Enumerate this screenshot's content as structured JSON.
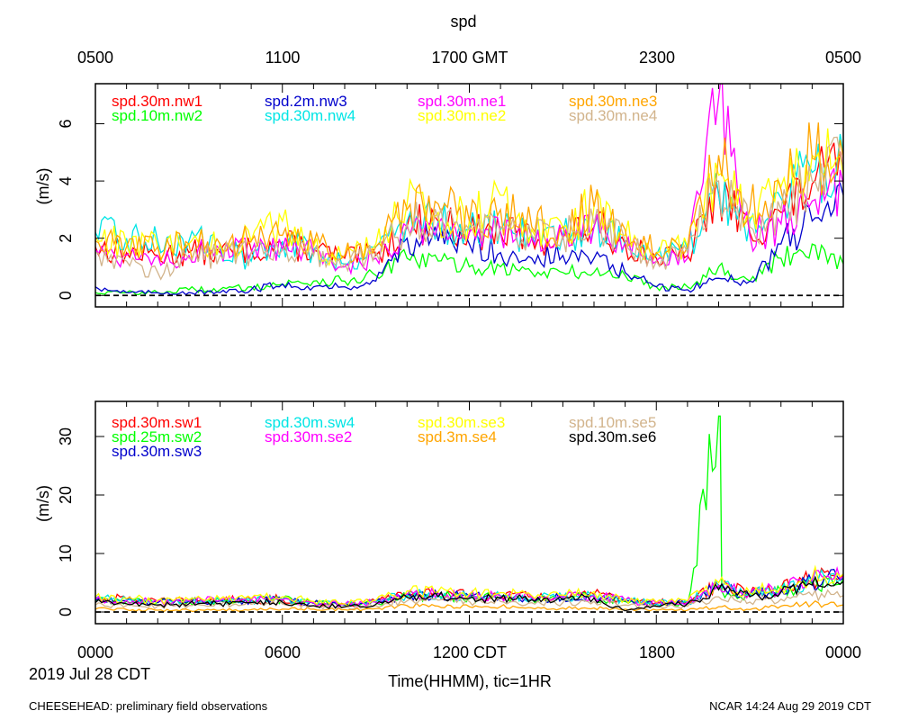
{
  "title": "spd",
  "top_axis": {
    "labels": [
      "0500",
      "1100",
      "1700 GMT",
      "2300",
      "0500"
    ]
  },
  "bottom_axis": {
    "labels": [
      "0000",
      "0600",
      "1200 CDT",
      "1800",
      "0000"
    ],
    "date_label": "2019 Jul 28 CDT",
    "xlabel": "Time(HHMM), tic=1HR"
  },
  "footer": {
    "left": "CHEESEHEAD: preliminary field observations",
    "right": "NCAR 14:24 Aug 29 2019 CDT"
  },
  "chart_data": [
    {
      "type": "line",
      "panel": "upper",
      "ylabel": "(m/s)",
      "ylim": [
        -0.4,
        7.4
      ],
      "yticks": [
        0,
        2,
        4,
        6
      ],
      "x_units": "hours since 0000 CDT",
      "xlim": [
        0,
        24
      ],
      "reference_line": 0,
      "series": [
        {
          "name": "spd.30m.nw1",
          "color": "#ff0000",
          "x": [
            0,
            1,
            2,
            3,
            4,
            5,
            6,
            7,
            8,
            9,
            10,
            11,
            12,
            13,
            14,
            15,
            16,
            17,
            18,
            19,
            20,
            21,
            22,
            23,
            24
          ],
          "values": [
            1.7,
            1.5,
            1.4,
            1.5,
            1.5,
            1.6,
            1.8,
            1.6,
            1.3,
            1.4,
            2.4,
            2.6,
            2.2,
            2.2,
            2.0,
            2.0,
            2.4,
            1.8,
            1.3,
            1.4,
            3.6,
            2.2,
            2.9,
            3.9,
            4.4
          ]
        },
        {
          "name": "spd.10m.nw2",
          "color": "#00ff00",
          "x": [
            0,
            1,
            2,
            3,
            4,
            5,
            6,
            7,
            8,
            9,
            10,
            11,
            12,
            13,
            14,
            15,
            16,
            17,
            18,
            19,
            20,
            21,
            22,
            23,
            24
          ],
          "values": [
            0.1,
            0.1,
            0.1,
            0.2,
            0.2,
            0.3,
            0.4,
            0.5,
            0.5,
            0.7,
            1.3,
            1.2,
            1.0,
            1.0,
            0.8,
            0.8,
            0.8,
            0.7,
            0.3,
            0.3,
            1.0,
            0.5,
            1.3,
            1.8,
            1.1
          ]
        },
        {
          "name": "spd.2m.nw3",
          "color": "#0000cc",
          "x": [
            0,
            1,
            2,
            3,
            4,
            5,
            6,
            7,
            8,
            9,
            10,
            11,
            12,
            13,
            14,
            15,
            16,
            17,
            18,
            19,
            20,
            21,
            22,
            23,
            24
          ],
          "values": [
            0.3,
            0.1,
            0.1,
            0.1,
            0.1,
            0.2,
            0.4,
            0.3,
            0.3,
            0.5,
            2.0,
            1.9,
            1.8,
            1.5,
            1.3,
            1.4,
            1.3,
            0.8,
            0.3,
            0.2,
            0.6,
            0.5,
            1.8,
            2.6,
            3.5
          ]
        },
        {
          "name": "spd.30m.nw4",
          "color": "#00e5e5",
          "x": [
            0,
            1,
            2,
            3,
            4,
            5,
            6,
            7,
            8,
            9,
            10,
            11,
            12,
            13,
            14,
            15,
            16,
            17,
            18,
            19,
            20,
            21,
            22,
            23,
            24
          ],
          "values": [
            2.2,
            2.0,
            1.9,
            1.9,
            1.8,
            1.2,
            1.9,
            1.6,
            1.1,
            1.7,
            2.6,
            2.6,
            2.3,
            2.3,
            2.1,
            2.1,
            2.4,
            1.9,
            1.4,
            1.6,
            3.5,
            2.6,
            3.4,
            4.3,
            5.0
          ]
        },
        {
          "name": "spd.30m.ne1",
          "color": "#ff00ff",
          "x": [
            0,
            1,
            2,
            3,
            4,
            5,
            6,
            7,
            8,
            9,
            10,
            11,
            12,
            13,
            14,
            15,
            16,
            17,
            18,
            19,
            20,
            21,
            22,
            23,
            24
          ],
          "values": [
            1.6,
            1.4,
            1.4,
            1.4,
            1.6,
            1.5,
            1.6,
            1.5,
            1.0,
            1.3,
            2.4,
            2.5,
            2.2,
            2.2,
            2.0,
            2.0,
            2.4,
            1.8,
            1.2,
            1.3,
            6.9,
            2.1,
            2.5,
            3.3,
            3.9
          ]
        },
        {
          "name": "spd.30m.ne2",
          "color": "#ffff00",
          "x": [
            0,
            1,
            2,
            3,
            4,
            5,
            6,
            7,
            8,
            9,
            10,
            11,
            12,
            13,
            14,
            15,
            16,
            17,
            18,
            19,
            20,
            21,
            22,
            23,
            24
          ],
          "values": [
            2.0,
            1.8,
            1.7,
            1.8,
            1.8,
            1.9,
            2.6,
            1.7,
            1.4,
            1.8,
            3.2,
            2.9,
            2.6,
            3.5,
            2.3,
            2.4,
            3.1,
            2.1,
            1.5,
            1.7,
            4.2,
            2.7,
            3.8,
            4.9,
            4.2
          ]
        },
        {
          "name": "spd.30m.ne3",
          "color": "#ffa500",
          "x": [
            0,
            1,
            2,
            3,
            4,
            5,
            6,
            7,
            8,
            9,
            10,
            11,
            12,
            13,
            14,
            15,
            16,
            17,
            18,
            19,
            20,
            21,
            22,
            23,
            24
          ],
          "values": [
            1.9,
            1.7,
            1.7,
            1.8,
            1.8,
            1.9,
            2.1,
            1.8,
            1.4,
            1.7,
            3.0,
            3.2,
            2.6,
            3.0,
            2.4,
            2.4,
            3.1,
            2.3,
            1.5,
            1.7,
            4.9,
            3.0,
            3.7,
            4.8,
            4.8
          ]
        },
        {
          "name": "spd.30m.ne4",
          "color": "#d2b48c",
          "x": [
            0,
            1,
            2,
            3,
            4,
            5,
            6,
            7,
            8,
            9,
            10,
            11,
            12,
            13,
            14,
            15,
            16,
            17,
            18,
            19,
            20,
            21,
            22,
            23,
            24
          ],
          "values": [
            1.5,
            1.2,
            0.8,
            1.3,
            1.4,
            1.5,
            1.6,
            1.4,
            1.1,
            1.5,
            2.5,
            2.7,
            2.3,
            2.4,
            2.1,
            2.1,
            2.5,
            1.9,
            1.2,
            1.5,
            4.0,
            2.4,
            3.0,
            4.0,
            4.4
          ]
        }
      ]
    },
    {
      "type": "line",
      "panel": "lower",
      "ylabel": "(m/s)",
      "ylim": [
        -2,
        36
      ],
      "yticks": [
        0,
        10,
        20,
        30
      ],
      "x_units": "hours since 0000 CDT",
      "xlim": [
        0,
        24
      ],
      "reference_line": 0,
      "series": [
        {
          "name": "spd.30m.sw1",
          "color": "#ff0000",
          "x": [
            0,
            1,
            2,
            3,
            4,
            5,
            6,
            7,
            8,
            9,
            10,
            11,
            12,
            13,
            14,
            15,
            16,
            17,
            18,
            19,
            20,
            21,
            22,
            23,
            24
          ],
          "values": [
            2.4,
            2.2,
            1.8,
            1.9,
            2.0,
            2.1,
            2.2,
            1.6,
            1.3,
            1.8,
            3.1,
            3.2,
            2.8,
            2.8,
            2.6,
            2.6,
            3.0,
            2.0,
            1.6,
            1.8,
            4.6,
            3.1,
            4.1,
            5.6,
            6.3
          ]
        },
        {
          "name": "spd.25m.sw2",
          "color": "#00ff00",
          "x": [
            0,
            1,
            2,
            3,
            4,
            5,
            6,
            7,
            8,
            9,
            10,
            11,
            12,
            13,
            14,
            15,
            16,
            17,
            18,
            19,
            20,
            20.05,
            20.1,
            20.3,
            21,
            22,
            23,
            24
          ],
          "values": [
            1.9,
            1.8,
            1.7,
            1.8,
            1.9,
            2.0,
            2.1,
            1.5,
            1.2,
            1.6,
            2.7,
            2.8,
            2.5,
            2.5,
            2.2,
            2.2,
            2.6,
            1.8,
            1.3,
            1.5,
            33.5,
            33.5,
            3.6,
            3.4,
            2.8,
            3.6,
            4.8,
            5.6
          ]
        },
        {
          "name": "spd.30m.sw3",
          "color": "#0000cc",
          "x": [
            0,
            1,
            2,
            3,
            4,
            5,
            6,
            7,
            8,
            9,
            10,
            11,
            12,
            13,
            14,
            15,
            16,
            17,
            18,
            19,
            20,
            21,
            22,
            23,
            24
          ],
          "values": [
            2.0,
            1.9,
            1.6,
            1.8,
            1.9,
            2.0,
            2.0,
            1.5,
            1.2,
            1.7,
            2.9,
            2.9,
            2.6,
            2.6,
            2.4,
            2.4,
            2.7,
            1.9,
            1.4,
            1.6,
            4.2,
            2.9,
            3.8,
            5.1,
            5.8
          ]
        },
        {
          "name": "spd.30m.sw4",
          "color": "#00e5e5",
          "x": [
            0,
            1,
            2,
            3,
            4,
            5,
            6,
            7,
            8,
            9,
            10,
            11,
            12,
            13,
            14,
            15,
            16,
            17,
            18,
            19,
            20,
            21,
            22,
            23,
            24
          ],
          "values": [
            2.3,
            2.1,
            1.9,
            1.9,
            2.0,
            2.1,
            2.1,
            1.6,
            1.3,
            1.8,
            3.0,
            3.0,
            2.7,
            2.7,
            2.5,
            2.5,
            2.9,
            2.0,
            1.5,
            1.7,
            4.4,
            3.0,
            4.0,
            5.3,
            6.0
          ]
        },
        {
          "name": "spd.30m.se2",
          "color": "#ff00ff",
          "x": [
            0,
            1,
            2,
            3,
            4,
            5,
            6,
            7,
            8,
            9,
            10,
            11,
            12,
            13,
            14,
            15,
            16,
            17,
            18,
            19,
            20,
            21,
            22,
            23,
            24
          ],
          "values": [
            2.2,
            2.0,
            1.8,
            1.9,
            2.0,
            2.1,
            2.1,
            1.6,
            1.3,
            1.7,
            3.0,
            3.1,
            2.7,
            2.7,
            2.5,
            2.5,
            2.8,
            2.0,
            1.5,
            1.7,
            4.5,
            3.2,
            4.0,
            5.4,
            6.1
          ]
        },
        {
          "name": "spd.30m.se3",
          "color": "#ffff00",
          "x": [
            0,
            1,
            2,
            3,
            4,
            5,
            6,
            7,
            8,
            9,
            10,
            11,
            12,
            13,
            14,
            15,
            16,
            17,
            18,
            19,
            20,
            21,
            22,
            23,
            24
          ],
          "values": [
            2.6,
            2.3,
            2.0,
            2.1,
            2.2,
            2.3,
            2.6,
            1.8,
            1.4,
            2.0,
            3.6,
            3.5,
            3.1,
            3.3,
            2.8,
            2.9,
            3.5,
            2.2,
            1.7,
            1.9,
            5.0,
            3.3,
            4.4,
            5.9,
            6.5
          ]
        },
        {
          "name": "spd.3m.se4",
          "color": "#ffa500",
          "x": [
            0,
            1,
            2,
            3,
            4,
            5,
            6,
            7,
            8,
            9,
            10,
            11,
            12,
            13,
            14,
            15,
            16,
            17,
            18,
            19,
            20,
            21,
            22,
            23,
            24
          ],
          "values": [
            0.5,
            0.4,
            0.3,
            0.3,
            0.3,
            0.4,
            0.5,
            0.5,
            0.4,
            0.6,
            1.1,
            1.0,
            0.9,
            0.9,
            0.7,
            0.7,
            0.7,
            0.5,
            0.3,
            0.3,
            0.9,
            0.4,
            1.0,
            1.4,
            1.2
          ]
        },
        {
          "name": "spd.10m.se5",
          "color": "#d2b48c",
          "x": [
            0,
            1,
            2,
            3,
            4,
            5,
            6,
            7,
            8,
            9,
            10,
            11,
            12,
            13,
            14,
            15,
            16,
            17,
            18,
            19,
            20,
            21,
            22,
            23,
            24
          ],
          "values": [
            1.2,
            1.1,
            1.0,
            1.1,
            1.2,
            1.3,
            1.4,
            1.0,
            0.8,
            1.1,
            1.9,
            2.0,
            1.8,
            1.8,
            1.6,
            1.6,
            1.8,
            1.2,
            0.9,
            1.0,
            2.6,
            1.7,
            2.2,
            2.8,
            2.8
          ]
        },
        {
          "name": "spd.30m.se6",
          "color": "#000000",
          "x": [
            0,
            1,
            2,
            3,
            4,
            5,
            6,
            7,
            8,
            9,
            10,
            11,
            12,
            13,
            14,
            15,
            16,
            17,
            18,
            19,
            20,
            21,
            22,
            23,
            24
          ],
          "values": [
            1.6,
            1.4,
            1.2,
            1.4,
            1.5,
            1.6,
            1.7,
            1.1,
            0.9,
            1.3,
            2.5,
            2.6,
            2.3,
            2.3,
            2.1,
            2.1,
            2.4,
            0.2,
            1.0,
            1.4,
            3.8,
            2.6,
            3.4,
            4.6,
            5.2
          ]
        }
      ]
    }
  ]
}
